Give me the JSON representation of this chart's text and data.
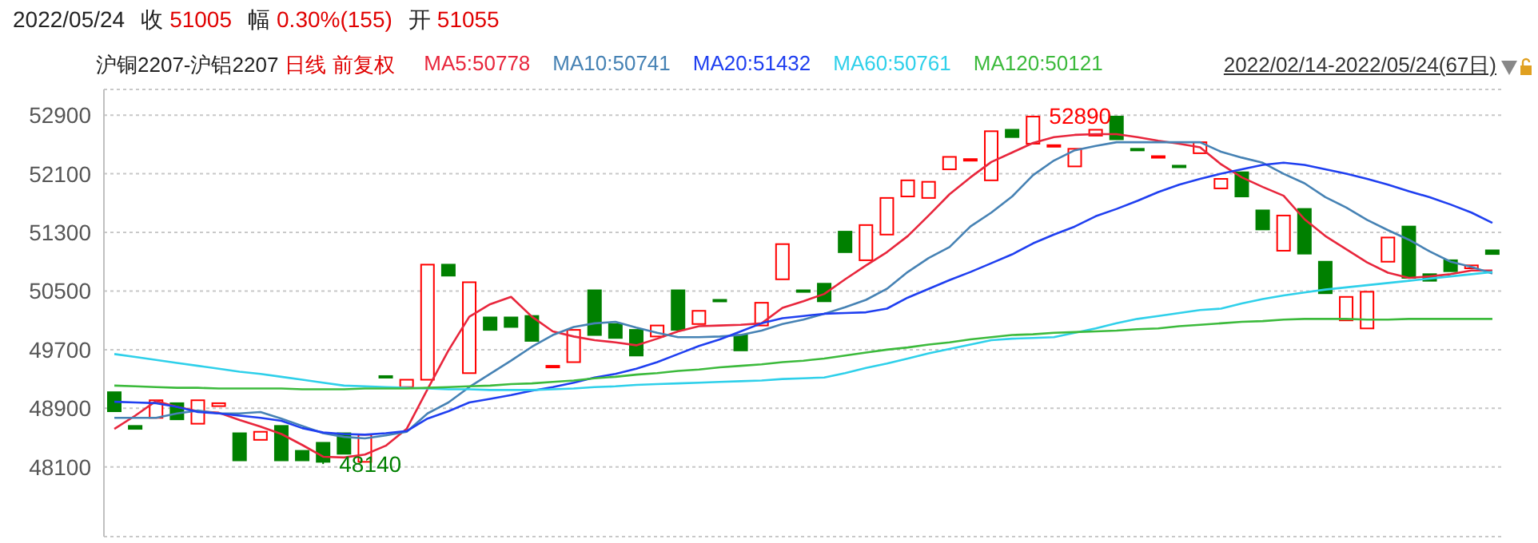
{
  "chart_data": {
    "type": "candlestick",
    "title": "2022/05/24 收 51005 幅 0.30%(155) 开 51055",
    "subtitle": "沪铜2207-沪铝2207 日线 前复权",
    "legend": "top",
    "grid": "y",
    "ylim": [
      47150,
      53250
    ],
    "yticks": [
      48100,
      48900,
      49700,
      50500,
      51300,
      52100,
      52900
    ],
    "categories": [
      null,
      null,
      null,
      null,
      null,
      null,
      null,
      null,
      null,
      null,
      null,
      null,
      null,
      null,
      null,
      null,
      null,
      null,
      null,
      null,
      null,
      null,
      null,
      null,
      null,
      null,
      null,
      null,
      null,
      null,
      null,
      null,
      null,
      null,
      null,
      null,
      null,
      null,
      null,
      null,
      null,
      null,
      null,
      null,
      null,
      null,
      null,
      null,
      null,
      null,
      null,
      null,
      null,
      null,
      null,
      null,
      null,
      null,
      null,
      null,
      null,
      null,
      null,
      null,
      null,
      null,
      null
    ],
    "ohlc": [
      [
        49120,
        49120,
        48860,
        48860
      ],
      [
        48660,
        48660,
        48620,
        48620
      ],
      [
        48770,
        49010,
        48770,
        49010
      ],
      [
        48970,
        48970,
        48750,
        48750
      ],
      [
        48690,
        49010,
        48690,
        49010
      ],
      [
        48930,
        48970,
        48930,
        48970
      ],
      [
        48560,
        48560,
        48190,
        48190
      ],
      [
        48470,
        48580,
        48470,
        48580
      ],
      [
        48660,
        48660,
        48190,
        48190
      ],
      [
        48320,
        48320,
        48190,
        48190
      ],
      [
        48430,
        48430,
        48140,
        48170
      ],
      [
        48560,
        48560,
        48280,
        48280
      ],
      [
        48170,
        48540,
        48170,
        48540
      ],
      [
        49340,
        49340,
        49320,
        49320
      ],
      [
        49190,
        49290,
        49190,
        49290
      ],
      [
        49290,
        50860,
        49290,
        50860
      ],
      [
        50860,
        50860,
        50710,
        50710
      ],
      [
        49380,
        50620,
        49380,
        50620
      ],
      [
        50140,
        50140,
        49970,
        49970
      ],
      [
        50140,
        50140,
        50010,
        50010
      ],
      [
        50160,
        50160,
        49820,
        49820
      ],
      [
        49460,
        49480,
        49460,
        49480
      ],
      [
        49530,
        49970,
        49530,
        49970
      ],
      [
        50510,
        50510,
        49900,
        49900
      ],
      [
        50050,
        50050,
        49860,
        49860
      ],
      [
        49970,
        49970,
        49620,
        49620
      ],
      [
        49880,
        50030,
        49880,
        50030
      ],
      [
        50510,
        50510,
        49970,
        49970
      ],
      [
        50050,
        50230,
        50050,
        50230
      ],
      [
        50380,
        50380,
        50360,
        50360
      ],
      [
        49900,
        49900,
        49690,
        49690
      ],
      [
        50030,
        50340,
        50030,
        50340
      ],
      [
        50660,
        51140,
        50660,
        51140
      ],
      [
        50510,
        50510,
        50490,
        50490
      ],
      [
        50600,
        50600,
        50360,
        50360
      ],
      [
        51310,
        51310,
        51030,
        51030
      ],
      [
        50920,
        51400,
        50920,
        51400
      ],
      [
        51270,
        51770,
        51270,
        51770
      ],
      [
        51790,
        52010,
        51790,
        52010
      ],
      [
        51770,
        51990,
        51770,
        51990
      ],
      [
        52160,
        52330,
        52160,
        52330
      ],
      [
        52290,
        52300,
        52290,
        52300
      ],
      [
        52010,
        52680,
        52010,
        52680
      ],
      [
        52700,
        52700,
        52600,
        52600
      ],
      [
        52510,
        52890,
        52510,
        52880
      ],
      [
        52480,
        52490,
        52480,
        52490
      ],
      [
        52200,
        52440,
        52200,
        52440
      ],
      [
        52620,
        52700,
        52620,
        52700
      ],
      [
        52880,
        52880,
        52570,
        52570
      ],
      [
        52440,
        52440,
        52420,
        52420
      ],
      [
        52330,
        52340,
        52330,
        52340
      ],
      [
        52210,
        52210,
        52200,
        52200
      ],
      [
        52380,
        52530,
        52380,
        52530
      ],
      [
        51900,
        52030,
        51900,
        52030
      ],
      [
        52120,
        52120,
        51790,
        51790
      ],
      [
        51600,
        51600,
        51340,
        51340
      ],
      [
        51050,
        51530,
        51050,
        51530
      ],
      [
        51620,
        51620,
        51010,
        51010
      ],
      [
        50900,
        50900,
        50470,
        50470
      ],
      [
        50100,
        50420,
        50100,
        50420
      ],
      [
        49990,
        50490,
        49990,
        50490
      ],
      [
        50900,
        51230,
        50900,
        51230
      ],
      [
        51380,
        51380,
        50680,
        50680
      ],
      [
        50730,
        50730,
        50640,
        50640
      ],
      [
        50920,
        50920,
        50770,
        50770
      ],
      [
        50810,
        50850,
        50810,
        50850
      ],
      [
        51055,
        51055,
        51005,
        51005
      ]
    ],
    "colors": [
      "#008000",
      "#008000",
      "#ff0000",
      "#008000",
      "#ff0000",
      "#ff0000",
      "#008000",
      "#ff0000",
      "#008000",
      "#008000",
      "#008000",
      "#008000",
      "#ff0000",
      "#008000",
      "#ff0000",
      "#ff0000",
      "#008000",
      "#ff0000",
      "#008000",
      "#008000",
      "#008000",
      "#ff0000",
      "#ff0000",
      "#008000",
      "#008000",
      "#008000",
      "#ff0000",
      "#008000",
      "#ff0000",
      "#008000",
      "#008000",
      "#ff0000",
      "#ff0000",
      "#008000",
      "#008000",
      "#008000",
      "#ff0000",
      "#ff0000",
      "#ff0000",
      "#ff0000",
      "#ff0000",
      "#ff0000",
      "#ff0000",
      "#008000",
      "#ff0000",
      "#ff0000",
      "#ff0000",
      "#ff0000",
      "#008000",
      "#008000",
      "#ff0000",
      "#008000",
      "#ff0000",
      "#ff0000",
      "#008000",
      "#008000",
      "#ff0000",
      "#008000",
      "#008000",
      "#ff0000",
      "#ff0000",
      "#ff0000",
      "#008000",
      "#008000",
      "#008000",
      "#ff0000",
      "#008000"
    ],
    "series": [
      {
        "type": "line",
        "name": "MA5:50778",
        "color": "#e8263c",
        "values": [
          48620,
          48800,
          49000,
          48920,
          48860,
          48840,
          48740,
          48650,
          48550,
          48400,
          48240,
          48230,
          48270,
          48390,
          48620,
          49160,
          49690,
          50150,
          50320,
          50420,
          50150,
          49950,
          49880,
          49830,
          49800,
          49760,
          49850,
          49950,
          50020,
          50030,
          50040,
          50060,
          50270,
          50360,
          50460,
          50660,
          50850,
          51030,
          51250,
          51530,
          51820,
          52050,
          52260,
          52390,
          52520,
          52600,
          52630,
          52640,
          52640,
          52600,
          52550,
          52510,
          52460,
          52230,
          52050,
          51920,
          51800,
          51480,
          51250,
          51070,
          50890,
          50750,
          50680,
          50700,
          50730,
          50780,
          50780
        ]
      },
      {
        "type": "line",
        "name": "MA10:50741",
        "color": "#4682b4",
        "values": [
          48770,
          48770,
          48770,
          48830,
          48870,
          48830,
          48830,
          48850,
          48760,
          48660,
          48560,
          48510,
          48490,
          48530,
          48580,
          48830,
          48980,
          49190,
          49370,
          49550,
          49740,
          49900,
          50010,
          50060,
          50080,
          50000,
          49930,
          49870,
          49870,
          49880,
          49900,
          49960,
          50050,
          50110,
          50190,
          50280,
          50380,
          50530,
          50760,
          50950,
          51100,
          51380,
          51570,
          51790,
          52080,
          52280,
          52420,
          52480,
          52530,
          52530,
          52530,
          52530,
          52530,
          52400,
          52320,
          52250,
          52100,
          51970,
          51780,
          51640,
          51470,
          51330,
          51200,
          51040,
          50900,
          50830,
          50740
        ]
      },
      {
        "type": "line",
        "name": "MA20:51432",
        "color": "#1f3ff0",
        "values": [
          48990,
          48980,
          48970,
          48920,
          48850,
          48830,
          48800,
          48770,
          48730,
          48630,
          48570,
          48550,
          48540,
          48560,
          48590,
          48760,
          48860,
          48980,
          49030,
          49080,
          49140,
          49190,
          49250,
          49320,
          49370,
          49440,
          49530,
          49640,
          49750,
          49840,
          49950,
          50060,
          50130,
          50160,
          50190,
          50200,
          50210,
          50260,
          50410,
          50530,
          50650,
          50760,
          50880,
          51000,
          51150,
          51270,
          51380,
          51520,
          51620,
          51730,
          51850,
          51950,
          52030,
          52100,
          52160,
          52220,
          52250,
          52220,
          52160,
          52100,
          52030,
          51950,
          51860,
          51780,
          51680,
          51570,
          51430
        ]
      },
      {
        "type": "line",
        "name": "MA60:50761",
        "color": "#2fd0ea",
        "values": [
          49640,
          49600,
          49560,
          49520,
          49480,
          49440,
          49400,
          49370,
          49330,
          49290,
          49250,
          49210,
          49200,
          49190,
          49180,
          49170,
          49160,
          49160,
          49150,
          49150,
          49150,
          49160,
          49170,
          49190,
          49200,
          49220,
          49230,
          49240,
          49250,
          49260,
          49270,
          49280,
          49300,
          49310,
          49320,
          49380,
          49450,
          49510,
          49580,
          49650,
          49710,
          49770,
          49830,
          49850,
          49860,
          49870,
          49930,
          49990,
          50060,
          50120,
          50160,
          50200,
          50240,
          50260,
          50330,
          50390,
          50440,
          50480,
          50520,
          50550,
          50580,
          50610,
          50640,
          50670,
          50700,
          50730,
          50760
        ]
      },
      {
        "type": "line",
        "name": "MA120:50121",
        "color": "#3cba3c",
        "values": [
          49210,
          49200,
          49190,
          49180,
          49180,
          49170,
          49170,
          49170,
          49170,
          49160,
          49160,
          49160,
          49170,
          49170,
          49170,
          49180,
          49190,
          49200,
          49210,
          49230,
          49240,
          49260,
          49280,
          49310,
          49330,
          49360,
          49380,
          49410,
          49430,
          49460,
          49480,
          49500,
          49530,
          49550,
          49580,
          49620,
          49660,
          49700,
          49730,
          49770,
          49800,
          49840,
          49870,
          49900,
          49910,
          49930,
          49940,
          49950,
          49960,
          49980,
          49990,
          50020,
          50040,
          50060,
          50080,
          50090,
          50110,
          50120,
          50120,
          50120,
          50110,
          50110,
          50120,
          50120,
          50120,
          50120,
          50120
        ]
      }
    ],
    "annotations": [
      "2022/02/14-2022/05/24(67日)",
      "52890",
      "48140"
    ]
  }
}
